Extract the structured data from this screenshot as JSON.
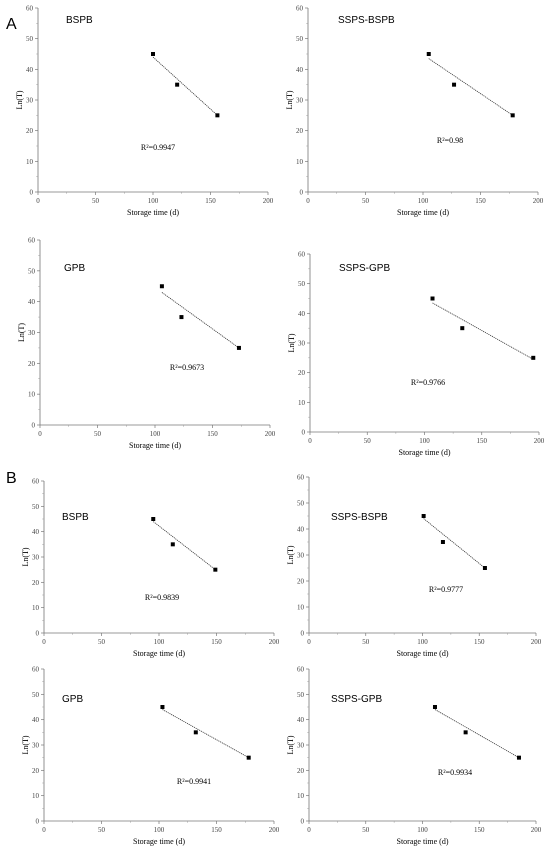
{
  "figure": {
    "panel_a_label": "A",
    "panel_b_label": "B"
  },
  "chart_data": [
    {
      "panel": "A",
      "type": "scatter",
      "title": "BSPB",
      "xlabel": "Storage time (d)",
      "ylabel": "Ln(T)",
      "xlim": [
        0,
        200
      ],
      "ylim": [
        0,
        60
      ],
      "xticks": [
        0,
        50,
        100,
        150,
        200
      ],
      "yticks": [
        0,
        10,
        20,
        30,
        40,
        50,
        60
      ],
      "r2_label": "R²=0.9947",
      "points": [
        {
          "x": 100,
          "y": 45
        },
        {
          "x": 121,
          "y": 35
        },
        {
          "x": 156,
          "y": 25
        }
      ],
      "fit": [
        [
          100,
          44
        ],
        [
          156,
          25
        ]
      ]
    },
    {
      "panel": "A",
      "type": "scatter",
      "title": "SSPS-BSPB",
      "xlabel": "Storage time (d)",
      "ylabel": "Ln(T)",
      "xlim": [
        0,
        200
      ],
      "ylim": [
        0,
        60
      ],
      "xticks": [
        0,
        50,
        100,
        150,
        200
      ],
      "yticks": [
        0,
        10,
        20,
        30,
        40,
        50,
        60
      ],
      "r2_label": "R²=0.98",
      "points": [
        {
          "x": 105,
          "y": 45
        },
        {
          "x": 127,
          "y": 35
        },
        {
          "x": 178,
          "y": 25
        }
      ],
      "fit": [
        [
          105,
          43.5
        ],
        [
          178,
          25
        ]
      ]
    },
    {
      "panel": "A",
      "type": "scatter",
      "title": "GPB",
      "xlabel": "Storage time (d)",
      "ylabel": "Ln(T)",
      "xlim": [
        0,
        200
      ],
      "ylim": [
        0,
        60
      ],
      "xticks": [
        0,
        50,
        100,
        150,
        200
      ],
      "yticks": [
        0,
        10,
        20,
        30,
        40,
        50,
        60
      ],
      "r2_label": "R²=0.9673",
      "points": [
        {
          "x": 106,
          "y": 45
        },
        {
          "x": 123,
          "y": 35
        },
        {
          "x": 173,
          "y": 25
        }
      ],
      "fit": [
        [
          106,
          43
        ],
        [
          173,
          25
        ]
      ]
    },
    {
      "panel": "A",
      "type": "scatter",
      "title": "SSPS-GPB",
      "xlabel": "Storage time (d)",
      "ylabel": "Ln(T)",
      "xlim": [
        0,
        200
      ],
      "ylim": [
        0,
        60
      ],
      "xticks": [
        0,
        50,
        100,
        150,
        200
      ],
      "yticks": [
        0,
        10,
        20,
        30,
        40,
        50,
        60
      ],
      "r2_label": "R²=0.9766",
      "points": [
        {
          "x": 107,
          "y": 45
        },
        {
          "x": 133,
          "y": 35
        },
        {
          "x": 195,
          "y": 25
        }
      ],
      "fit": [
        [
          107,
          43.5
        ],
        [
          195,
          24.5
        ]
      ]
    },
    {
      "panel": "B",
      "type": "scatter",
      "title": "BSPB",
      "xlabel": "Storage time (d)",
      "ylabel": "Ln(T)",
      "xlim": [
        0,
        200
      ],
      "ylim": [
        0,
        60
      ],
      "xticks": [
        0,
        50,
        100,
        150,
        200
      ],
      "yticks": [
        0,
        10,
        20,
        30,
        40,
        50,
        60
      ],
      "r2_label": "R²=0.9839",
      "points": [
        {
          "x": 95,
          "y": 45
        },
        {
          "x": 112,
          "y": 35
        },
        {
          "x": 149,
          "y": 25
        }
      ],
      "fit": [
        [
          95,
          44
        ],
        [
          149,
          25
        ]
      ]
    },
    {
      "panel": "B",
      "type": "scatter",
      "title": "SSPS-BSPB",
      "xlabel": "Storage time (d)",
      "ylabel": "Ln(T)",
      "xlim": [
        0,
        200
      ],
      "ylim": [
        0,
        60
      ],
      "xticks": [
        0,
        50,
        100,
        150,
        200
      ],
      "yticks": [
        0,
        10,
        20,
        30,
        40,
        50,
        60
      ],
      "r2_label": "R²=0.9777",
      "points": [
        {
          "x": 101,
          "y": 45
        },
        {
          "x": 118,
          "y": 35
        },
        {
          "x": 155,
          "y": 25
        }
      ],
      "fit": [
        [
          101,
          44
        ],
        [
          155,
          25
        ]
      ]
    },
    {
      "panel": "B",
      "type": "scatter",
      "title": "GPB",
      "xlabel": "Storage time (d)",
      "ylabel": "Ln(T)",
      "xlim": [
        0,
        200
      ],
      "ylim": [
        0,
        60
      ],
      "xticks": [
        0,
        50,
        100,
        150,
        200
      ],
      "yticks": [
        0,
        10,
        20,
        30,
        40,
        50,
        60
      ],
      "r2_label": "R²=0.9941",
      "points": [
        {
          "x": 103,
          "y": 45
        },
        {
          "x": 132,
          "y": 35
        },
        {
          "x": 178,
          "y": 25
        }
      ],
      "fit": [
        [
          103,
          44
        ],
        [
          178,
          25
        ]
      ]
    },
    {
      "panel": "B",
      "type": "scatter",
      "title": "SSPS-GPB",
      "xlabel": "Storage time (d)",
      "ylabel": "Ln(T)",
      "xlim": [
        0,
        200
      ],
      "ylim": [
        0,
        60
      ],
      "xticks": [
        0,
        50,
        100,
        150,
        200
      ],
      "yticks": [
        0,
        10,
        20,
        30,
        40,
        50,
        60
      ],
      "r2_label": "R²=0.9934",
      "points": [
        {
          "x": 111,
          "y": 45
        },
        {
          "x": 138,
          "y": 35
        },
        {
          "x": 185,
          "y": 25
        }
      ],
      "fit": [
        [
          111,
          44
        ],
        [
          185,
          25
        ]
      ]
    }
  ]
}
